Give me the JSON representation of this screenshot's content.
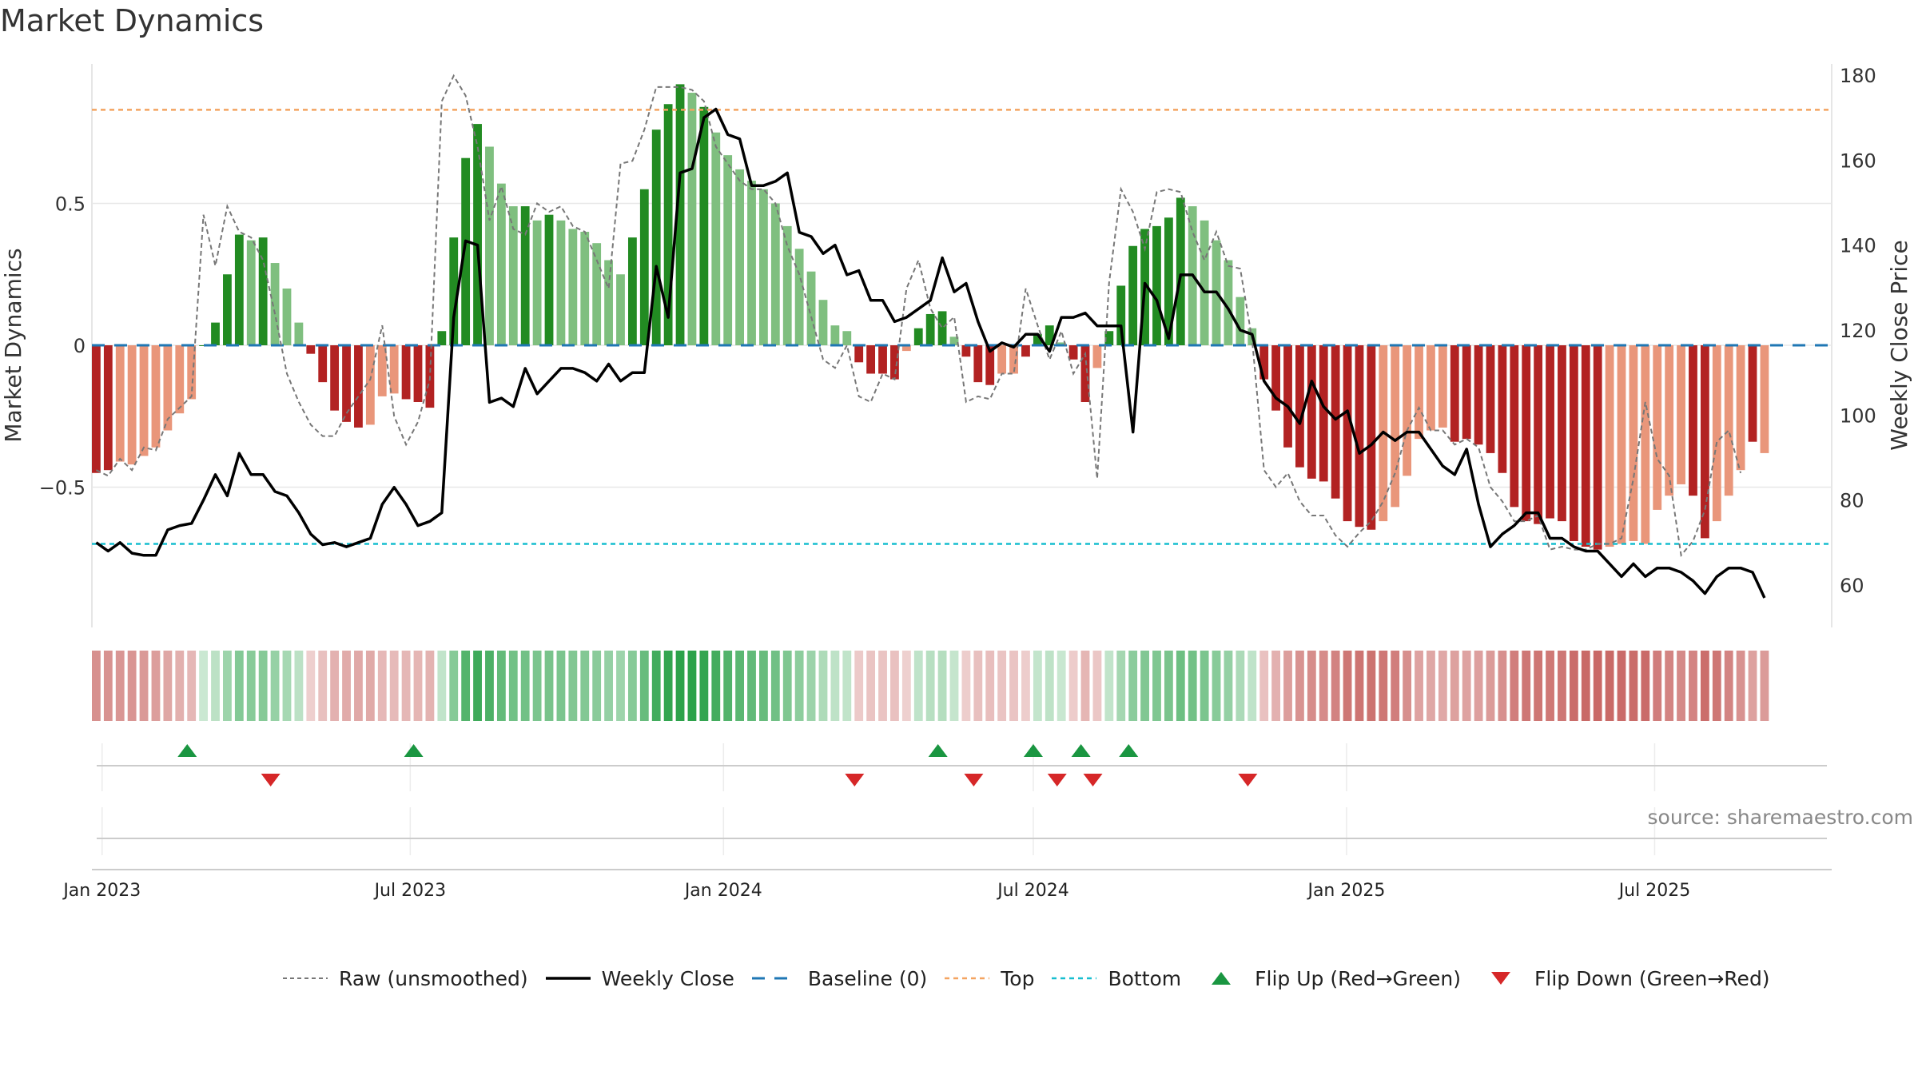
{
  "title": "Market Dynamics",
  "source": "source: sharemaestro.com",
  "legend": [
    {
      "key": "raw",
      "label": "Raw (unsmoothed)"
    },
    {
      "key": "close",
      "label": "Weekly Close"
    },
    {
      "key": "baseline",
      "label": "Baseline (0)"
    },
    {
      "key": "top",
      "label": "Top"
    },
    {
      "key": "bottom",
      "label": "Bottom"
    },
    {
      "key": "flipup",
      "label": "Flip Up (Red→Green)"
    },
    {
      "key": "flipdown",
      "label": "Flip Down (Green→Red)"
    }
  ],
  "colors": {
    "strong_green": "#228b22",
    "light_green": "#7fbf7f",
    "strong_red": "#b22222",
    "light_red": "#e9967a",
    "close_line": "#000000",
    "raw_line": "#777777",
    "baseline": "#1f77b4",
    "top": "#f4a460",
    "bottom": "#17becf",
    "flip_up": "#1a9641",
    "flip_down": "#d62728"
  },
  "chart_data": {
    "type": "bar",
    "ylabel": "Market Dynamics",
    "y2label": "Weekly Close Price",
    "ylim": [
      -0.98,
      0.98
    ],
    "y2lim": [
      50,
      182
    ],
    "yticks": [
      -0.5,
      0,
      0.5
    ],
    "ytick_labels": [
      "−0.5",
      "0",
      "0.5"
    ],
    "y2ticks": [
      60,
      80,
      100,
      120,
      140,
      160,
      180
    ],
    "y2tick_labels": [
      "60",
      "80",
      "100",
      "120",
      "140",
      "160",
      "180"
    ],
    "x_range": [
      "2022-12-26",
      "2025-10-13"
    ],
    "xticks": [
      "2023-01-01",
      "2023-07-01",
      "2024-01-01",
      "2024-07-01",
      "2025-01-01",
      "2025-07-01"
    ],
    "xtick_labels": [
      "Jan 2023",
      "Jul 2023",
      "Jan 2024",
      "Jul 2024",
      "Jan 2025",
      "Jul 2025"
    ],
    "top_level": 0.83,
    "bottom_level": -0.7,
    "baseline": 0,
    "grid": true,
    "legend_position": "bottom",
    "start_week": "2022-12-26",
    "values": [
      -0.45,
      -0.44,
      -0.41,
      -0.42,
      -0.39,
      -0.36,
      -0.3,
      -0.24,
      -0.19,
      0,
      0.08,
      0.25,
      0.39,
      0.37,
      0.38,
      0.29,
      0.2,
      0.08,
      -0.03,
      -0.13,
      -0.23,
      -0.27,
      -0.29,
      -0.28,
      -0.18,
      -0.17,
      -0.19,
      -0.2,
      -0.22,
      0.05,
      0.38,
      0.66,
      0.78,
      0.7,
      0.57,
      0.49,
      0.49,
      0.44,
      0.46,
      0.44,
      0.41,
      0.4,
      0.36,
      0.3,
      0.25,
      0.38,
      0.55,
      0.76,
      0.85,
      0.92,
      0.89,
      0.84,
      0.75,
      0.67,
      0.62,
      0.58,
      0.55,
      0.5,
      0.42,
      0.34,
      0.26,
      0.16,
      0.07,
      0.05,
      -0.06,
      -0.1,
      -0.1,
      -0.12,
      -0.02,
      0.06,
      0.11,
      0.12,
      0.03,
      -0.04,
      -0.13,
      -0.14,
      -0.1,
      -0.1,
      -0.04,
      0.04,
      0.07,
      0.01,
      -0.05,
      -0.2,
      -0.08,
      0.05,
      0.21,
      0.35,
      0.41,
      0.42,
      0.45,
      0.52,
      0.49,
      0.44,
      0.37,
      0.3,
      0.17,
      0.06,
      -0.12,
      -0.23,
      -0.36,
      -0.43,
      -0.47,
      -0.48,
      -0.54,
      -0.62,
      -0.64,
      -0.65,
      -0.62,
      -0.57,
      -0.46,
      -0.33,
      -0.3,
      -0.29,
      -0.34,
      -0.33,
      -0.35,
      -0.38,
      -0.45,
      -0.57,
      -0.62,
      -0.63,
      -0.61,
      -0.62,
      -0.69,
      -0.71,
      -0.72,
      -0.71,
      -0.7,
      -0.69,
      -0.7,
      -0.58,
      -0.53,
      -0.49,
      -0.53,
      -0.68,
      -0.62,
      -0.53,
      -0.44,
      -0.34,
      -0.38
    ],
    "strength": [
      1,
      1,
      0,
      0,
      0,
      0,
      0,
      0,
      0,
      1,
      1,
      1,
      1,
      0,
      1,
      0,
      0,
      0,
      1,
      1,
      1,
      1,
      1,
      0,
      0,
      0,
      1,
      1,
      1,
      1,
      1,
      1,
      1,
      0,
      0,
      0,
      1,
      0,
      1,
      0,
      0,
      0,
      0,
      0,
      0,
      1,
      1,
      1,
      1,
      1,
      0,
      1,
      0,
      0,
      0,
      0,
      0,
      0,
      0,
      0,
      0,
      0,
      0,
      0,
      1,
      1,
      1,
      1,
      0,
      1,
      1,
      1,
      0,
      1,
      1,
      1,
      0,
      0,
      1,
      1,
      1,
      0,
      1,
      1,
      0,
      1,
      1,
      1,
      1,
      1,
      1,
      1,
      0,
      0,
      0,
      0,
      0,
      0,
      1,
      1,
      1,
      1,
      1,
      1,
      1,
      1,
      1,
      1,
      0,
      0,
      0,
      0,
      0,
      0,
      1,
      1,
      1,
      1,
      1,
      1,
      1,
      1,
      1,
      1,
      1,
      1,
      1,
      0,
      0,
      0,
      0,
      0,
      0,
      0,
      1,
      1,
      0,
      0,
      0,
      1
    ],
    "close": [
      70,
      68,
      70,
      67.5,
      67,
      67,
      73,
      74,
      74.5,
      80,
      86,
      81,
      91,
      86,
      86,
      82,
      81,
      77,
      72,
      69.5,
      70,
      69,
      70,
      71,
      79,
      83,
      79,
      74,
      75,
      77,
      123,
      141,
      140,
      103,
      104,
      102,
      111,
      105,
      108,
      111,
      111,
      110,
      108,
      112,
      108,
      110,
      110,
      135,
      123,
      157,
      158,
      170,
      172,
      166,
      165,
      154,
      154,
      155,
      157,
      143,
      142,
      138,
      140,
      133,
      134,
      127,
      127,
      122,
      123,
      125,
      127,
      137,
      129,
      131,
      122,
      115,
      117,
      116,
      119,
      119,
      115,
      123,
      123,
      124,
      121,
      121,
      121,
      96,
      131,
      127,
      118,
      133,
      133,
      129,
      129,
      125,
      120,
      119,
      108,
      104,
      102,
      98,
      108,
      102,
      99,
      101,
      91,
      93,
      96,
      94,
      96,
      96,
      92,
      88,
      86,
      92,
      79,
      69,
      72,
      74,
      77,
      77,
      71,
      71,
      69,
      68,
      68,
      65,
      62,
      65,
      62,
      64,
      64,
      63,
      61,
      58,
      62,
      64,
      64,
      63,
      57
    ],
    "raw": [
      -0.44,
      -0.46,
      -0.4,
      -0.44,
      -0.36,
      -0.37,
      -0.26,
      -0.22,
      -0.18,
      0.46,
      0.28,
      0.49,
      0.4,
      0.38,
      0.3,
      0.11,
      -0.1,
      -0.2,
      -0.28,
      -0.32,
      -0.32,
      -0.24,
      -0.18,
      -0.12,
      0.07,
      -0.25,
      -0.35,
      -0.27,
      -0.12,
      0.86,
      0.95,
      0.88,
      0.7,
      0.44,
      0.56,
      0.41,
      0.39,
      0.5,
      0.47,
      0.49,
      0.42,
      0.4,
      0.3,
      0.2,
      0.64,
      0.65,
      0.76,
      0.91,
      0.91,
      0.91,
      0.9,
      0.86,
      0.7,
      0.64,
      0.58,
      0.55,
      0.55,
      0.5,
      0.35,
      0.25,
      0.1,
      -0.05,
      -0.08,
      0.0,
      -0.18,
      -0.2,
      -0.1,
      -0.12,
      0.2,
      0.3,
      0.13,
      0.06,
      0.1,
      -0.2,
      -0.18,
      -0.19,
      -0.1,
      -0.1,
      0.2,
      0.07,
      -0.05,
      0.05,
      -0.1,
      -0.03,
      -0.47,
      0.22,
      0.55,
      0.47,
      0.34,
      0.54,
      0.55,
      0.54,
      0.4,
      0.3,
      0.4,
      0.28,
      0.27,
      0.02,
      -0.44,
      -0.5,
      -0.45,
      -0.55,
      -0.6,
      -0.6,
      -0.67,
      -0.71,
      -0.66,
      -0.62,
      -0.55,
      -0.45,
      -0.3,
      -0.22,
      -0.3,
      -0.3,
      -0.35,
      -0.33,
      -0.36,
      -0.5,
      -0.55,
      -0.62,
      -0.62,
      -0.6,
      -0.72,
      -0.71,
      -0.72,
      -0.72,
      -0.7,
      -0.7,
      -0.68,
      -0.47,
      -0.2,
      -0.4,
      -0.46,
      -0.74,
      -0.69,
      -0.58,
      -0.34,
      -0.3,
      -0.45
    ],
    "flip_up": [
      "2023-02-20",
      "2023-07-03",
      "2024-05-06",
      "2024-07-01",
      "2024-07-29",
      "2024-08-26"
    ],
    "flip_down": [
      "2023-04-10",
      "2024-03-18",
      "2024-05-27",
      "2024-07-15",
      "2024-08-05",
      "2024-11-04"
    ]
  }
}
